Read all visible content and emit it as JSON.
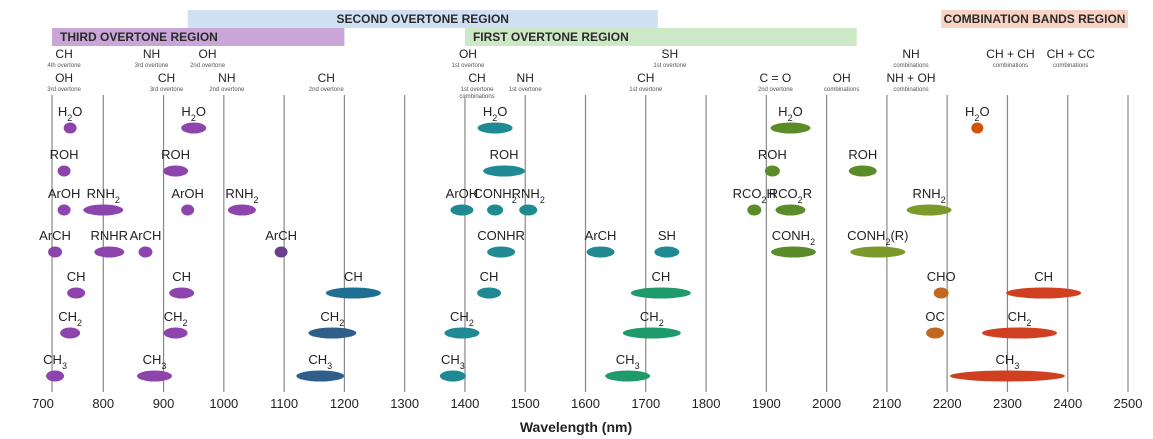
{
  "chart_data": {
    "type": "scatter",
    "xlabel": "Wavelength (nm)",
    "xlim": [
      700,
      2500
    ],
    "x_ticks": [
      700,
      800,
      900,
      1000,
      1100,
      1200,
      1300,
      1400,
      1500,
      1600,
      1700,
      1800,
      1900,
      2000,
      2100,
      2200,
      2300,
      2400,
      2500
    ],
    "grid_lines_x": [
      715,
      800,
      900,
      1000,
      1100,
      1200,
      1300,
      1400,
      1500,
      1600,
      1700,
      1800,
      1900,
      2000,
      2100,
      2200,
      2300,
      2400,
      2500
    ],
    "regions": [
      {
        "label": "SECOND OVERTONE REGION",
        "x_start": 940,
        "x_end": 1720,
        "level": 1,
        "color": "#cfe0f2"
      },
      {
        "label": "COMBINATION BANDS REGION",
        "x_start": 2190,
        "x_end": 2500,
        "level": 1,
        "color": "#f8d3c4"
      },
      {
        "label": "THIRD OVERTONE REGION",
        "x_start": 715,
        "x_end": 1200,
        "level": 2,
        "color": "#c9a6d7"
      },
      {
        "label": "FIRST OVERTONE REGION",
        "x_start": 1400,
        "x_end": 2050,
        "level": 2,
        "color": "#cde8c7"
      }
    ],
    "band_headers": [
      {
        "bond": "CH",
        "note": "4th overtone",
        "x": 735,
        "row": 1
      },
      {
        "bond": "NH",
        "note": "3rd overtone",
        "x": 880,
        "row": 1
      },
      {
        "bond": "OH",
        "note": "2nd overtone",
        "x": 973,
        "row": 1
      },
      {
        "bond": "OH",
        "note": "1st overtone",
        "x": 1405,
        "row": 1
      },
      {
        "bond": "SH",
        "note": "1st overtone",
        "x": 1740,
        "row": 1
      },
      {
        "bond": "NH",
        "note": "combinations",
        "x": 2140,
        "row": 1
      },
      {
        "bond": "CH + CH",
        "note": "combinations",
        "x": 2305,
        "row": 1
      },
      {
        "bond": "CH + CC",
        "note": "combinations",
        "x": 2405,
        "row": 1
      },
      {
        "bond": "OH",
        "note": "3rd overtone",
        "x": 735,
        "row": 2
      },
      {
        "bond": "CH",
        "note": "3rd overtone",
        "x": 905,
        "row": 2
      },
      {
        "bond": "NH",
        "note": "2nd overtone",
        "x": 1005,
        "row": 2
      },
      {
        "bond": "CH",
        "note": "2nd overtone",
        "x": 1170,
        "row": 2
      },
      {
        "bond": "CH",
        "note": "1st overtone combinations",
        "x": 1420,
        "row": 2
      },
      {
        "bond": "NH",
        "note": "1st overtone",
        "x": 1500,
        "row": 2
      },
      {
        "bond": "CH",
        "note": "1st overtone",
        "x": 1700,
        "row": 2
      },
      {
        "bond": "C = O",
        "note": "2nd overtone",
        "x": 1915,
        "row": 2
      },
      {
        "bond": "OH",
        "note": "combinations",
        "x": 2025,
        "row": 2
      },
      {
        "bond": "NH + OH",
        "note": "combinations",
        "x": 2140,
        "row": 2
      }
    ],
    "bands": [
      {
        "label": "H2O",
        "x": 745,
        "row": 0,
        "width": 13,
        "color": "#8e44ad"
      },
      {
        "label": "H2O",
        "x": 950,
        "row": 0,
        "width": 25,
        "color": "#8e44ad"
      },
      {
        "label": "H2O",
        "x": 1450,
        "row": 0,
        "width": 35,
        "color": "#1f8a93"
      },
      {
        "label": "H2O",
        "x": 1940,
        "row": 0,
        "width": 40,
        "color": "#5b8c2a"
      },
      {
        "label": "H2O",
        "x": 2250,
        "row": 0,
        "width": 12,
        "color": "#d35400"
      },
      {
        "label": "ROH",
        "x": 735,
        "row": 1,
        "width": 13,
        "color": "#8e44ad"
      },
      {
        "label": "ROH",
        "x": 920,
        "row": 1,
        "width": 25,
        "color": "#8e44ad"
      },
      {
        "label": "ROH",
        "x": 1465,
        "row": 1,
        "width": 42,
        "color": "#1f8a93"
      },
      {
        "label": "ROH",
        "x": 1910,
        "row": 1,
        "width": 15,
        "color": "#5b8c2a"
      },
      {
        "label": "ROH",
        "x": 2060,
        "row": 1,
        "width": 28,
        "color": "#5b8c2a"
      },
      {
        "label": "ArOH",
        "x": 735,
        "row": 2,
        "width": 13,
        "color": "#8e44ad"
      },
      {
        "label": "RNH2",
        "x": 800,
        "row": 2,
        "width": 40,
        "color": "#8e44ad"
      },
      {
        "label": "ArOH",
        "x": 940,
        "row": 2,
        "width": 13,
        "color": "#8e44ad"
      },
      {
        "label": "RNH2",
        "x": 1030,
        "row": 2,
        "width": 28,
        "color": "#8e44ad"
      },
      {
        "label": "ArOH",
        "x": 1395,
        "row": 2,
        "width": 23,
        "color": "#1f8a93"
      },
      {
        "label": "CONH2",
        "x": 1450,
        "row": 2,
        "width": 16,
        "color": "#1f8a93"
      },
      {
        "label": "RNH2",
        "x": 1505,
        "row": 2,
        "width": 18,
        "color": "#1f8a93"
      },
      {
        "label": "RCO2H",
        "x": 1880,
        "row": 2,
        "width": 14,
        "color": "#5b8c2a"
      },
      {
        "label": "RCO2R",
        "x": 1940,
        "row": 2,
        "width": 30,
        "color": "#5b8c2a"
      },
      {
        "label": "RNH2",
        "x": 2170,
        "row": 2,
        "width": 45,
        "color": "#7a9a2a"
      },
      {
        "label": "ArCH",
        "x": 720,
        "row": 3,
        "width": 14,
        "color": "#8e44ad"
      },
      {
        "label": "RNHR",
        "x": 810,
        "row": 3,
        "width": 30,
        "color": "#8e44ad"
      },
      {
        "label": "ArCH",
        "x": 870,
        "row": 3,
        "width": 14,
        "color": "#8e44ad"
      },
      {
        "label": "ArCH",
        "x": 1095,
        "row": 3,
        "width": 13,
        "color": "#6a3d8e"
      },
      {
        "label": "CONHR",
        "x": 1460,
        "row": 3,
        "width": 28,
        "color": "#1f8a93"
      },
      {
        "label": "ArCH",
        "x": 1625,
        "row": 3,
        "width": 28,
        "color": "#1f8a93"
      },
      {
        "label": "SH",
        "x": 1735,
        "row": 3,
        "width": 25,
        "color": "#1f8a93"
      },
      {
        "label": "CONH2",
        "x": 1945,
        "row": 3,
        "width": 45,
        "color": "#5b8c2a"
      },
      {
        "label": "CONH2(R)",
        "x": 2085,
        "row": 3,
        "width": 55,
        "color": "#7a9a2a"
      },
      {
        "label": "CH",
        "x": 755,
        "row": 4,
        "width": 18,
        "color": "#8e44ad"
      },
      {
        "label": "CH",
        "x": 930,
        "row": 4,
        "width": 25,
        "color": "#8e44ad"
      },
      {
        "label": "CH",
        "x": 1215,
        "row": 4,
        "width": 55,
        "color": "#1f6f93"
      },
      {
        "label": "CH",
        "x": 1440,
        "row": 4,
        "width": 24,
        "color": "#1f8a93"
      },
      {
        "label": "CH",
        "x": 1725,
        "row": 4,
        "width": 60,
        "color": "#1f9a6a"
      },
      {
        "label": "CHO",
        "x": 2190,
        "row": 4,
        "width": 15,
        "color": "#c0681f"
      },
      {
        "label": "CH",
        "x": 2360,
        "row": 4,
        "width": 75,
        "color": "#d04020"
      },
      {
        "label": "CH2",
        "x": 745,
        "row": 5,
        "width": 20,
        "color": "#8e44ad"
      },
      {
        "label": "CH2",
        "x": 920,
        "row": 5,
        "width": 24,
        "color": "#8e44ad"
      },
      {
        "label": "CH2",
        "x": 1180,
        "row": 5,
        "width": 48,
        "color": "#2d5f8a"
      },
      {
        "label": "CH2",
        "x": 1395,
        "row": 5,
        "width": 35,
        "color": "#1f8a93"
      },
      {
        "label": "CH2",
        "x": 1710,
        "row": 5,
        "width": 58,
        "color": "#1f9a6a"
      },
      {
        "label": "OC",
        "x": 2180,
        "row": 5,
        "width": 18,
        "color": "#c0681f"
      },
      {
        "label": "CH2",
        "x": 2320,
        "row": 5,
        "width": 75,
        "color": "#d04020"
      },
      {
        "label": "CH3",
        "x": 720,
        "row": 6,
        "width": 18,
        "color": "#8e44ad"
      },
      {
        "label": "CH3",
        "x": 885,
        "row": 6,
        "width": 35,
        "color": "#8e44ad"
      },
      {
        "label": "CH3",
        "x": 1160,
        "row": 6,
        "width": 48,
        "color": "#2d5f8a"
      },
      {
        "label": "CH3",
        "x": 1380,
        "row": 6,
        "width": 26,
        "color": "#1f8a93"
      },
      {
        "label": "CH3",
        "x": 1670,
        "row": 6,
        "width": 45,
        "color": "#1f9a6a"
      },
      {
        "label": "CH3",
        "x": 2300,
        "row": 6,
        "width": 115,
        "color": "#d04020"
      }
    ]
  }
}
